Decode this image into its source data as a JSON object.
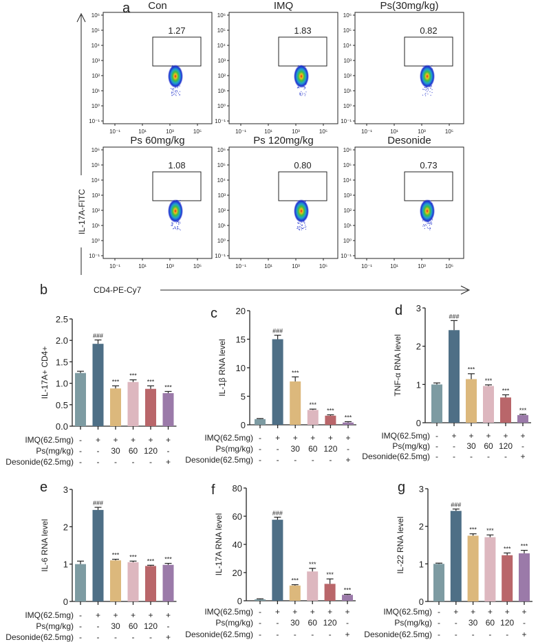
{
  "panel_letters": [
    "a",
    "b",
    "c",
    "d",
    "e",
    "f",
    "g"
  ],
  "flow": {
    "y_axis_label": "IL-17A-FITC",
    "x_axis_label": "CD4-PE-Cy7",
    "y_ticks": [
      "10⁶",
      "10⁵",
      "10⁴",
      "10³",
      "10²",
      "10¹",
      "10⁰",
      "10⁻¹"
    ],
    "x_ticks": [
      "10⁻¹",
      "10¹",
      "10³",
      "10⁵"
    ],
    "plots": [
      {
        "title": "Con",
        "gate_value": "1.27"
      },
      {
        "title": "IMQ",
        "gate_value": "1.83"
      },
      {
        "title": "Ps(30mg/kg)",
        "gate_value": "0.82"
      },
      {
        "title": "Ps 60mg/kg",
        "gate_value": "1.08"
      },
      {
        "title": "Ps 120mg/kg",
        "gate_value": "0.80"
      },
      {
        "title": "Desonide",
        "gate_value": "0.73"
      }
    ]
  },
  "colors": [
    "#7d9ba2",
    "#4e6f86",
    "#dcb87c",
    "#ddb7bf",
    "#b9666a",
    "#9b7aa9"
  ],
  "treatments": {
    "row_labels": [
      "IMQ(62.5mg)",
      "Ps(mg/kg)",
      "Desonide(62.5mg)"
    ],
    "rows": [
      [
        "-",
        "+",
        "+",
        "+",
        "+",
        "+"
      ],
      [
        "-",
        "-",
        "30",
        "60",
        "120",
        "-"
      ],
      [
        "-",
        "-",
        "-",
        "-",
        "-",
        "+"
      ]
    ]
  },
  "chart_data": [
    {
      "panel": "b",
      "type": "bar",
      "ylabel": "IL-17A+ CD4+",
      "ylim": [
        0,
        2.5
      ],
      "yticks": [
        "0.0",
        "0.5",
        "1.0",
        "1.5",
        "2.0",
        "2.5"
      ],
      "values": [
        1.24,
        1.92,
        0.88,
        1.03,
        0.87,
        0.77
      ],
      "errors": [
        0.04,
        0.09,
        0.06,
        0.05,
        0.07,
        0.04
      ],
      "significance": [
        "",
        "###",
        "***",
        "***",
        "***",
        "***"
      ]
    },
    {
      "panel": "c",
      "type": "bar",
      "ylabel": "IL-1β RNA level",
      "ylim": [
        0,
        20
      ],
      "yticks": [
        "0",
        "5",
        "10",
        "15",
        "20"
      ],
      "values": [
        1.0,
        15.0,
        7.6,
        2.6,
        1.6,
        0.4
      ],
      "errors": [
        0.1,
        0.7,
        0.8,
        0.15,
        0.15,
        0.15
      ],
      "significance": [
        "",
        "###",
        "***",
        "***",
        "***",
        "***"
      ]
    },
    {
      "panel": "d",
      "type": "bar",
      "ylabel": "TNF-α RNA level",
      "ylim": [
        0,
        3
      ],
      "yticks": [
        "0",
        "1",
        "2",
        "3"
      ],
      "values": [
        1.0,
        2.42,
        1.14,
        0.96,
        0.66,
        0.2
      ],
      "errors": [
        0.04,
        0.25,
        0.14,
        0.03,
        0.07,
        0.02
      ],
      "significance": [
        "",
        "###",
        "***",
        "***",
        "***",
        "***"
      ]
    },
    {
      "panel": "e",
      "type": "bar",
      "ylabel": "IL-6 RNA level",
      "ylim": [
        0,
        3
      ],
      "yticks": [
        "0",
        "1",
        "2",
        "3"
      ],
      "values": [
        1.0,
        2.45,
        1.1,
        1.05,
        0.95,
        0.98
      ],
      "errors": [
        0.08,
        0.07,
        0.03,
        0.03,
        0.02,
        0.04
      ],
      "significance": [
        "",
        "###",
        "***",
        "***",
        "***",
        "***"
      ]
    },
    {
      "panel": "f",
      "type": "bar",
      "ylabel": "IL-17A RNA level",
      "ylim": [
        0,
        80
      ],
      "yticks": [
        "0",
        "20",
        "40",
        "60",
        "80"
      ],
      "values": [
        1.0,
        57.5,
        10.8,
        20.8,
        12.0,
        4.2
      ],
      "errors": [
        0.4,
        1.8,
        0.6,
        2.2,
        3.5,
        0.4
      ],
      "significance": [
        "",
        "###",
        "***",
        "***",
        "***",
        "***"
      ]
    },
    {
      "panel": "g",
      "type": "bar",
      "ylabel": "IL-22 RNA level",
      "ylim": [
        0,
        3
      ],
      "yticks": [
        "0",
        "1",
        "2",
        "3"
      ],
      "values": [
        1.0,
        2.41,
        1.75,
        1.71,
        1.23,
        1.28
      ],
      "errors": [
        0.02,
        0.05,
        0.05,
        0.06,
        0.06,
        0.08
      ],
      "significance": [
        "",
        "###",
        "***",
        "***",
        "***",
        "***"
      ]
    }
  ]
}
